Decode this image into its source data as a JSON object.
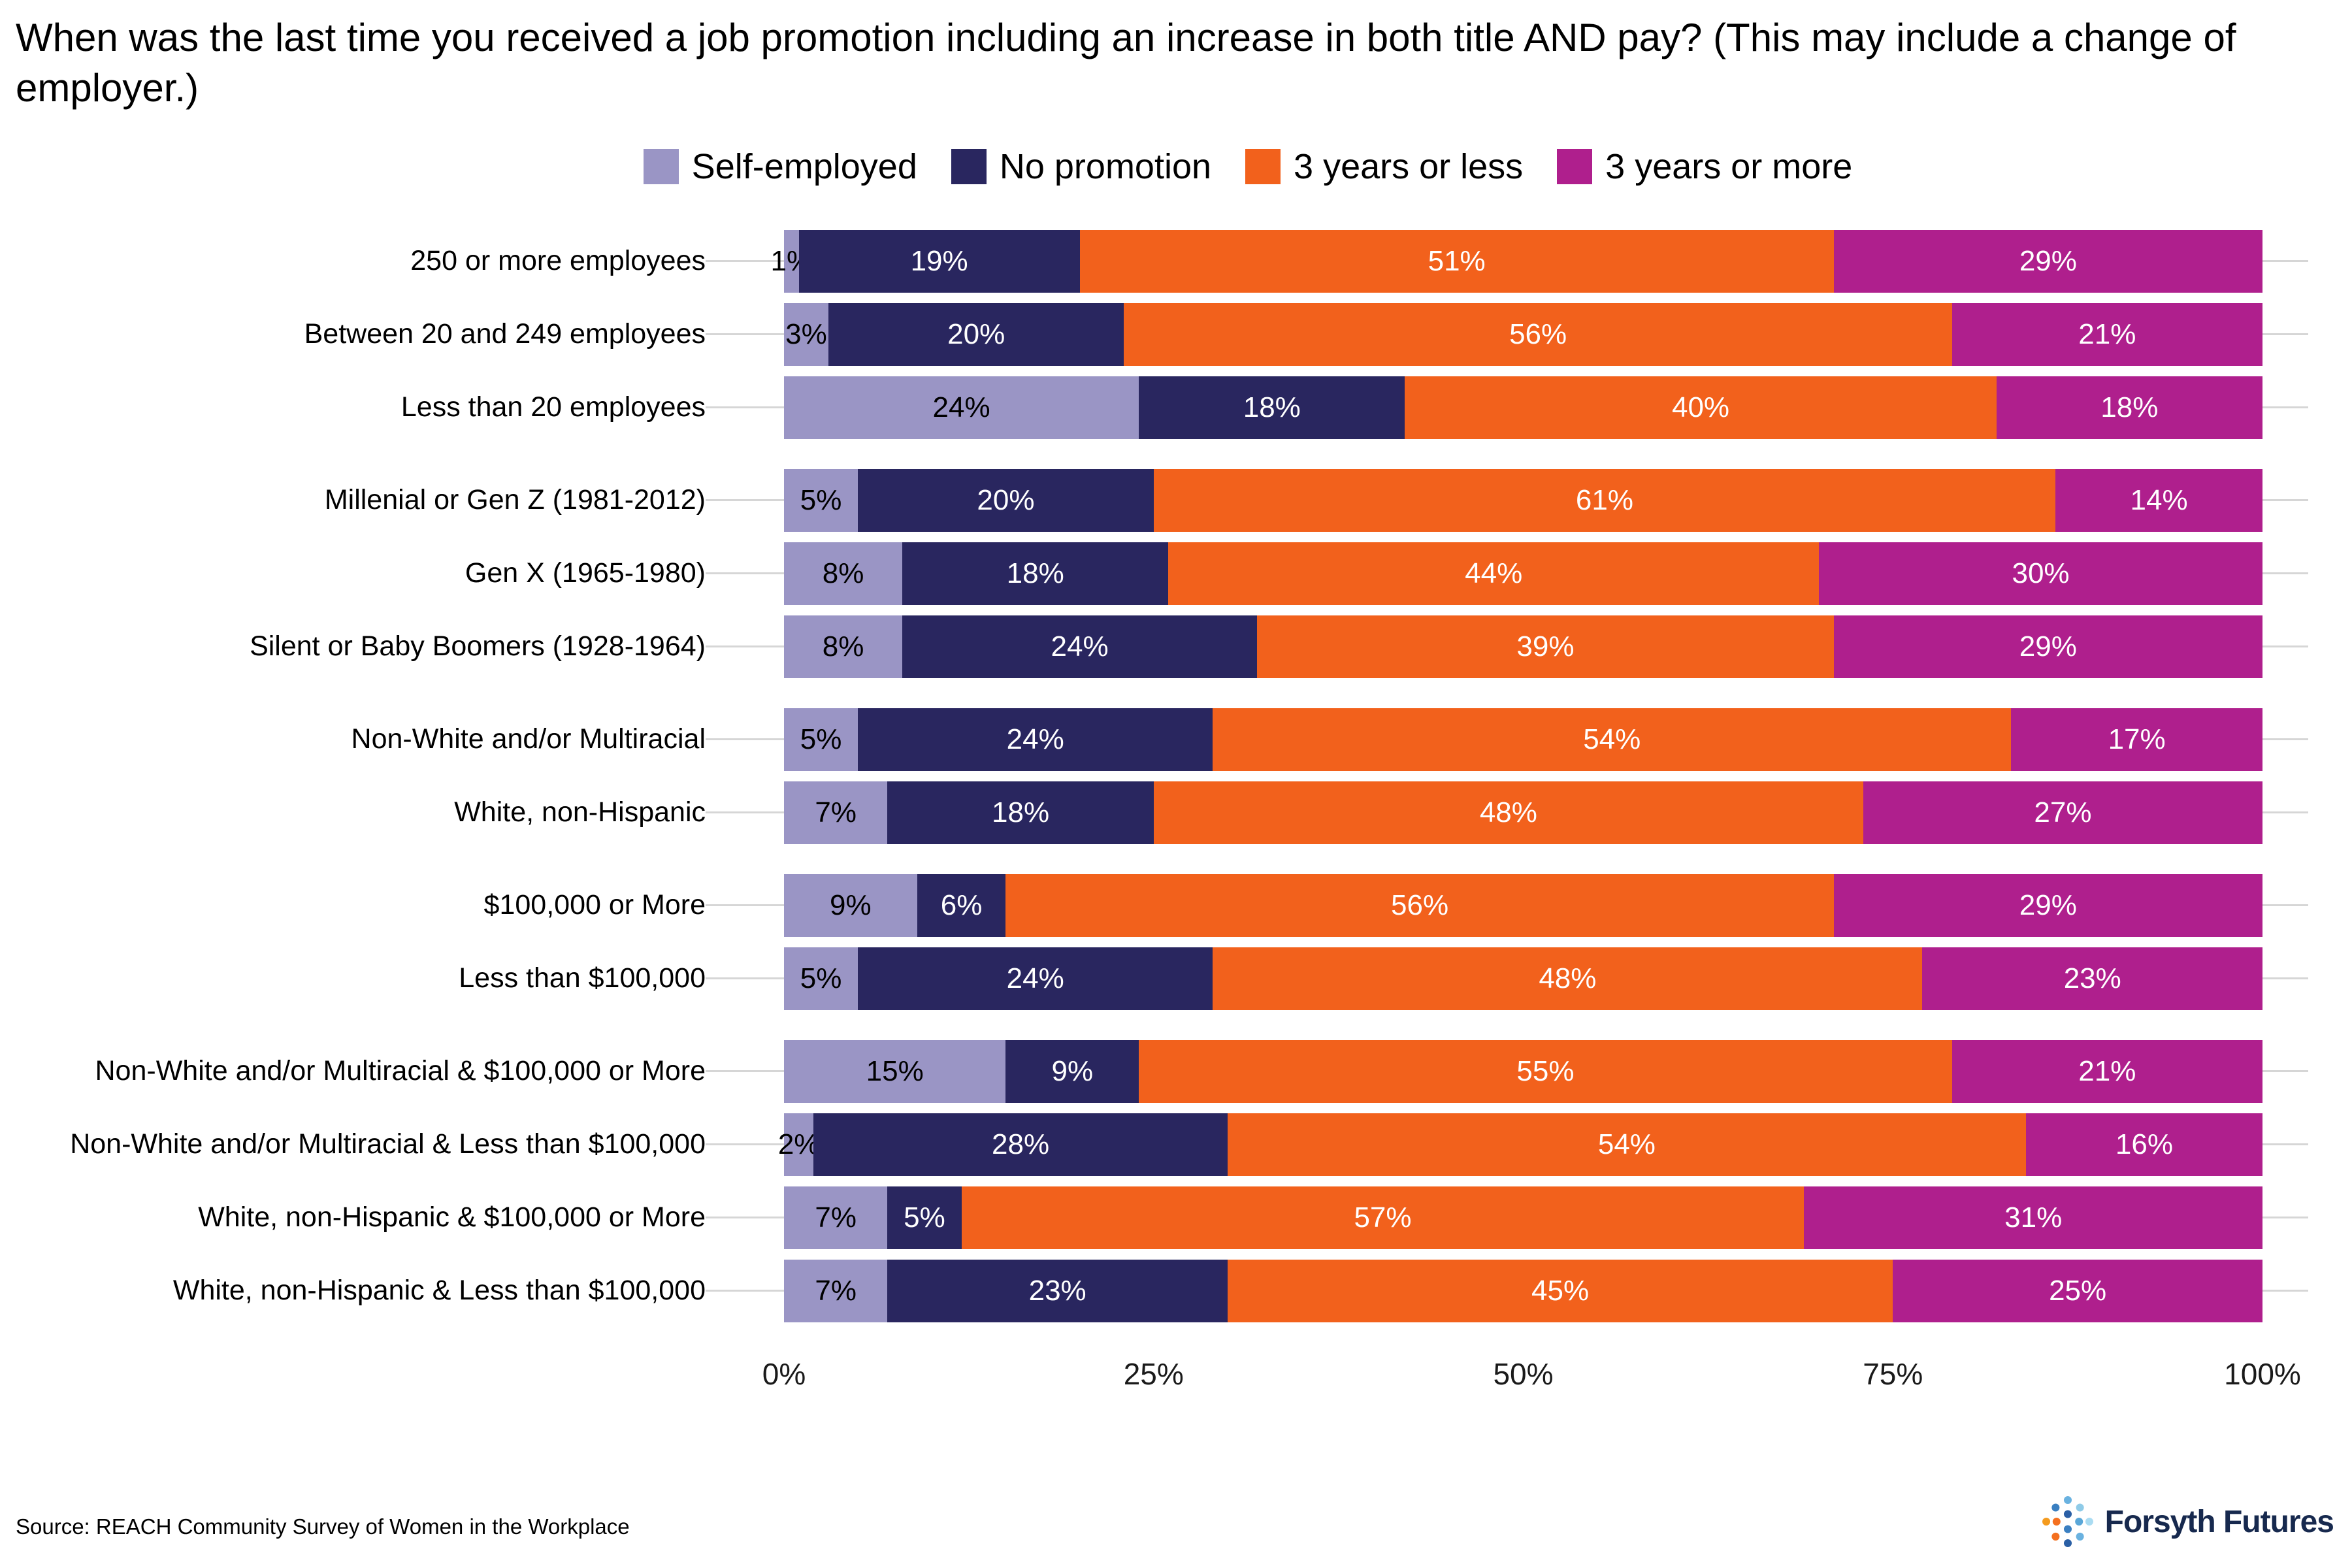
{
  "title": "When was the last time you received a job promotion including an increase in both title AND pay? (This may include a change of employer.)",
  "legend": [
    {
      "label": "Self-employed",
      "color": "#9a95c5"
    },
    {
      "label": "No promotion",
      "color": "#29265f"
    },
    {
      "label": "3 years or less",
      "color": "#f2611c"
    },
    {
      "label": "3 years or more",
      "color": "#af1f8d"
    }
  ],
  "chart_data": {
    "type": "bar",
    "orientation": "horizontal",
    "stacked": true,
    "unit": "%",
    "xlim": [
      0,
      100
    ],
    "series_names": [
      "Self-employed",
      "No promotion",
      "3 years or less",
      "3 years or more"
    ],
    "ticks": [
      {
        "label": "0%",
        "pos": 0
      },
      {
        "label": "25%",
        "pos": 25
      },
      {
        "label": "50%",
        "pos": 50
      },
      {
        "label": "75%",
        "pos": 75
      },
      {
        "label": "100%",
        "pos": 100
      }
    ],
    "groups": [
      {
        "name": "employer-size",
        "rows": [
          {
            "label": "250 or more employees",
            "values": [
              1,
              19,
              51,
              29
            ]
          },
          {
            "label": "Between 20 and 249 employees",
            "values": [
              3,
              20,
              56,
              21
            ]
          },
          {
            "label": "Less than 20 employees",
            "values": [
              24,
              18,
              40,
              18
            ]
          }
        ]
      },
      {
        "name": "generation",
        "rows": [
          {
            "label": "Millenial or Gen Z (1981-2012)",
            "values": [
              5,
              20,
              61,
              14
            ]
          },
          {
            "label": "Gen X (1965-1980)",
            "values": [
              8,
              18,
              44,
              30
            ]
          },
          {
            "label": "Silent or Baby Boomers (1928-1964)",
            "values": [
              8,
              24,
              39,
              29
            ]
          }
        ]
      },
      {
        "name": "race",
        "rows": [
          {
            "label": "Non-White and/or Multiracial",
            "values": [
              5,
              24,
              54,
              17
            ]
          },
          {
            "label": "White, non-Hispanic",
            "values": [
              7,
              18,
              48,
              27
            ]
          }
        ]
      },
      {
        "name": "income",
        "rows": [
          {
            "label": "$100,000 or More",
            "values": [
              9,
              6,
              56,
              29
            ]
          },
          {
            "label": "Less than $100,000",
            "values": [
              5,
              24,
              48,
              23
            ]
          }
        ]
      },
      {
        "name": "race-and-income",
        "rows": [
          {
            "label": "Non-White and/or Multiracial & $100,000 or More",
            "values": [
              15,
              9,
              55,
              21
            ]
          },
          {
            "label": "Non-White and/or Multiracial & Less than $100,000",
            "values": [
              2,
              28,
              54,
              16
            ]
          },
          {
            "label": "White, non-Hispanic & $100,000 or More",
            "values": [
              7,
              5,
              57,
              31
            ]
          },
          {
            "label": "White, non-Hispanic & Less than $100,000",
            "values": [
              7,
              23,
              45,
              25
            ]
          }
        ]
      }
    ]
  },
  "source": "Source: REACH Community Survey of Women in the Workplace",
  "logo_text": "Forsyth Futures"
}
